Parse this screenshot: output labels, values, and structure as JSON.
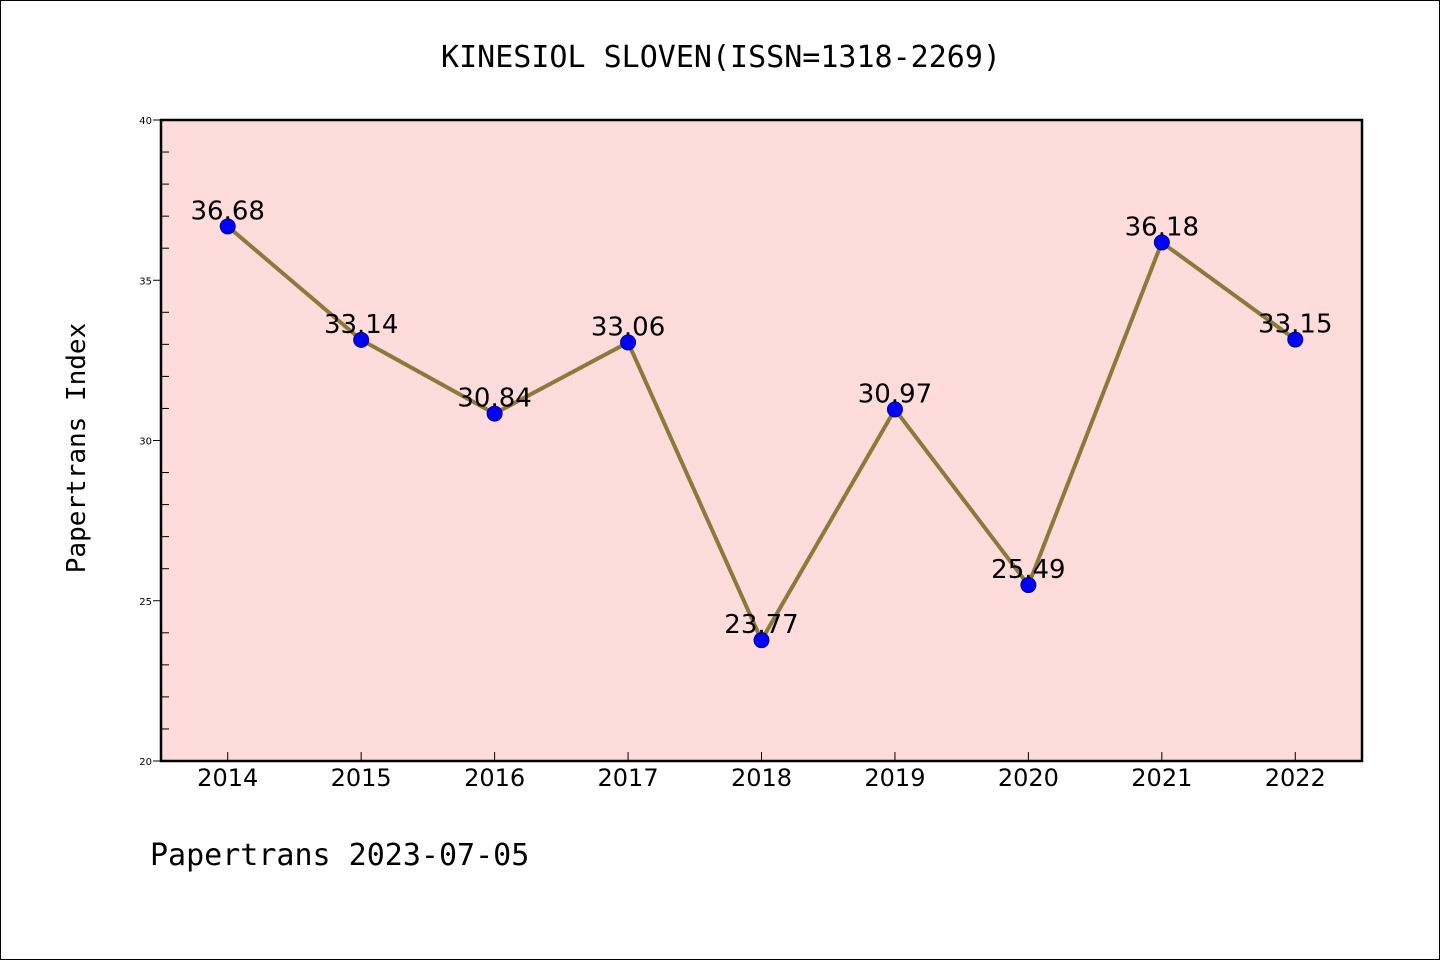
{
  "footer": {
    "text": "Papertrans 2023-07-05"
  },
  "colors": {
    "plot_background": "#FDDCDB",
    "line": "#8B7A3A",
    "marker": "#0000FF",
    "marker_edge": "#00008B",
    "axis": "#000000"
  },
  "chart_data": {
    "type": "line",
    "title": "KINESIOL SLOVEN(ISSN=1318-2269)",
    "xlabel": "",
    "ylabel": "Papertrans Index",
    "categories": [
      "2014",
      "2015",
      "2016",
      "2017",
      "2018",
      "2019",
      "2020",
      "2021",
      "2022"
    ],
    "series": [
      {
        "values": [
          36.68,
          33.14,
          30.84,
          33.06,
          23.77,
          30.97,
          25.49,
          36.18,
          33.15
        ],
        "labels": [
          "36.68",
          "33.14",
          "30.84",
          "33.06",
          "23.77",
          "30.97",
          "25.49",
          "36.18",
          "33.15"
        ]
      }
    ],
    "ylim": [
      20,
      40
    ],
    "yticks": [
      20,
      25,
      30,
      35,
      40
    ],
    "ytick_labels": [
      "20",
      "25",
      "30",
      "35",
      "40"
    ],
    "y_minor_step": 1,
    "grid": false,
    "legend": "none"
  }
}
